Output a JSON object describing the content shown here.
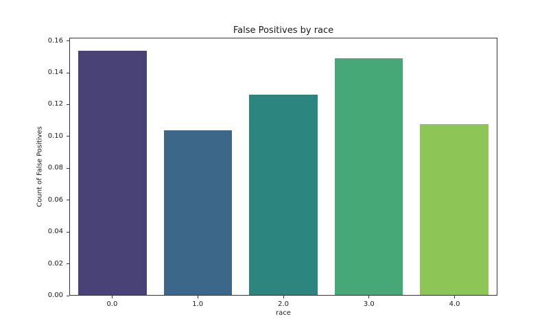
{
  "figure": {
    "background": "#ffffff",
    "spine_color": "#333333",
    "text_color": "#1a1a1a"
  },
  "chart_data": {
    "type": "bar",
    "title": "False Positives by race",
    "xlabel": "race",
    "ylabel": "Count of False Positives",
    "categories": [
      "0.0",
      "1.0",
      "2.0",
      "3.0",
      "4.0"
    ],
    "values": [
      0.154,
      0.104,
      0.1265,
      0.1495,
      0.108
    ],
    "colors": [
      "#484276",
      "#3d6789",
      "#2c857f",
      "#45a876",
      "#8dc657"
    ],
    "ylim": [
      0,
      0.162
    ],
    "yticks": [
      "0.00",
      "0.02",
      "0.04",
      "0.06",
      "0.08",
      "0.10",
      "0.12",
      "0.14",
      "0.16"
    ],
    "ytick_values": [
      0.0,
      0.02,
      0.04,
      0.06,
      0.08,
      0.1,
      0.12,
      0.14,
      0.16
    ],
    "grid": false,
    "legend": "none"
  }
}
